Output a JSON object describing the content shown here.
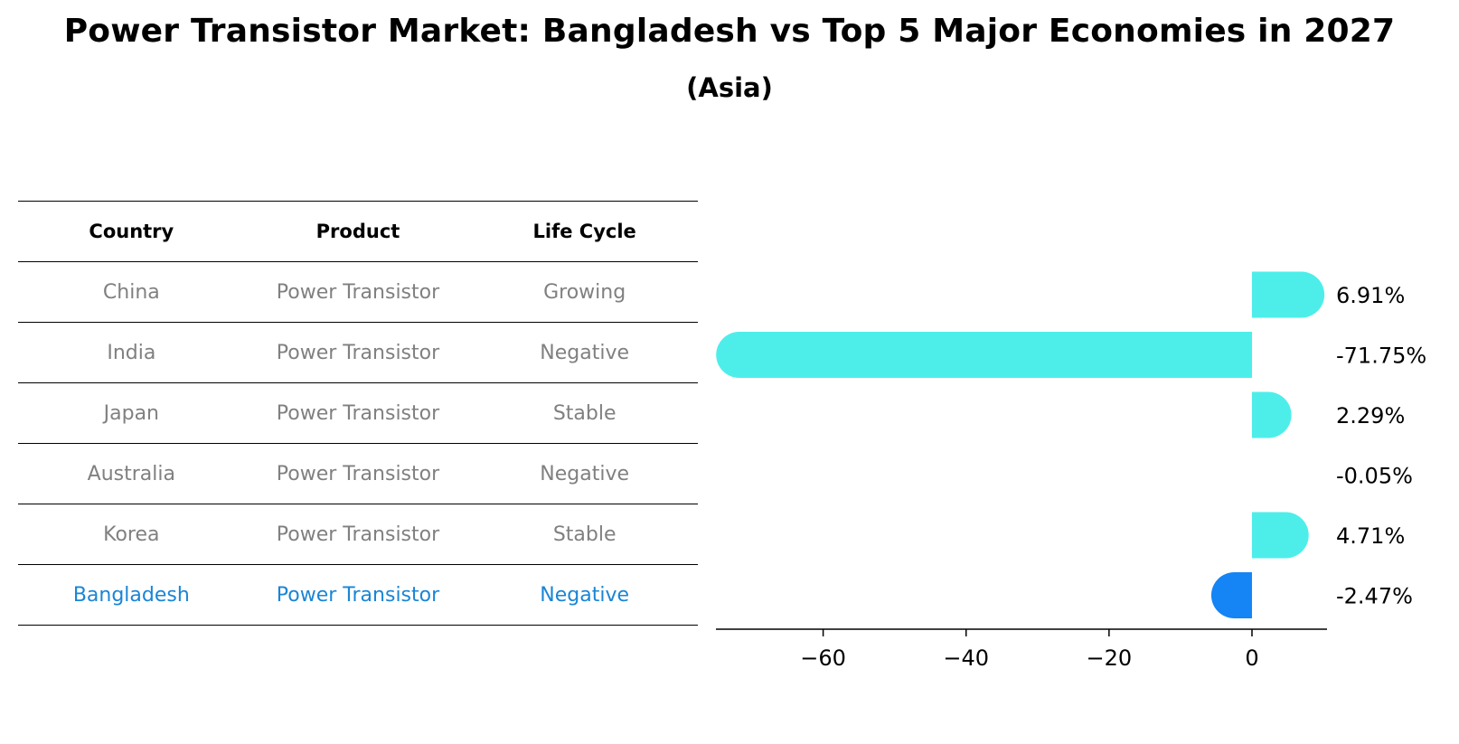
{
  "title": "Power Transistor Market: Bangladesh vs Top 5 Major Economies in 2027",
  "subtitle": "(Asia)",
  "table": {
    "headers": [
      "Country",
      "Product",
      "Life Cycle"
    ],
    "rows": [
      [
        "China",
        "Power Transistor",
        "Growing"
      ],
      [
        "India",
        "Power Transistor",
        "Negative"
      ],
      [
        "Japan",
        "Power Transistor",
        "Stable"
      ],
      [
        "Australia",
        "Power Transistor",
        "Negative"
      ],
      [
        "Korea",
        "Power Transistor",
        "Stable"
      ],
      [
        "Bangladesh",
        "Power Transistor",
        "Negative"
      ]
    ],
    "highlight_row": 5
  },
  "chart_data": {
    "type": "bar",
    "orientation": "horizontal",
    "title": "Power Transistor Market: Bangladesh vs Top 5 Major Economies in 2027",
    "subtitle": "(Asia)",
    "categories": [
      "China",
      "India",
      "Japan",
      "Australia",
      "Korea",
      "Bangladesh"
    ],
    "values": [
      6.91,
      -71.75,
      2.29,
      -0.05,
      4.71,
      -2.47
    ],
    "labels": [
      "6.91%",
      "-71.75%",
      "2.29%",
      "-0.05%",
      "4.71%",
      "-2.47%"
    ],
    "xlim": [
      -75,
      10.5
    ],
    "xticks": [
      -60,
      -40,
      -20,
      0
    ],
    "xtick_labels": [
      "−60",
      "−40",
      "−20",
      "0"
    ],
    "xlabel": "",
    "ylabel": "",
    "grid": false,
    "colors": {
      "default": "#4deeea",
      "highlight": "#1584f4"
    },
    "highlight_index": 5
  }
}
